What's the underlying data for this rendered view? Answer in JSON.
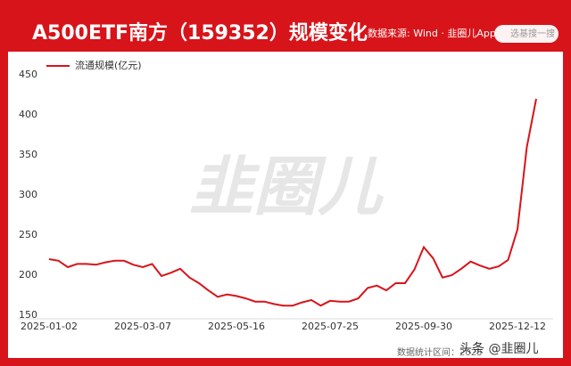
{
  "header": {
    "title": "A500ETF南方（159352）规模变化",
    "source": "数据来源: Wind · 韭圈儿App",
    "search_placeholder": "选基搜一搜"
  },
  "watermark": "韭圈儿",
  "footer": {
    "range_text": "数据统计区间：2025",
    "overlay": "头条 @韭圈儿"
  },
  "chart_data": {
    "type": "line",
    "categories": [
      "2025-01-02",
      null,
      null,
      null,
      null,
      null,
      null,
      null,
      null,
      null,
      "2025-03-07",
      null,
      null,
      null,
      null,
      null,
      null,
      null,
      null,
      null,
      "2025-05-16",
      null,
      null,
      null,
      null,
      null,
      null,
      null,
      null,
      null,
      "2025-07-25",
      null,
      null,
      null,
      null,
      null,
      null,
      null,
      null,
      null,
      "2025-09-30",
      null,
      null,
      null,
      null,
      null,
      null,
      null,
      null,
      null,
      "2025-12-12",
      null,
      null
    ],
    "series": [
      {
        "name": "流通规模(亿元)",
        "color": "#d7141a",
        "values": [
          220,
          218,
          210,
          214,
          214,
          213,
          216,
          218,
          218,
          213,
          210,
          214,
          199,
          203,
          208,
          197,
          190,
          181,
          173,
          176,
          174,
          171,
          167,
          167,
          164,
          162,
          162,
          166,
          169,
          162,
          168,
          167,
          167,
          171,
          184,
          187,
          181,
          190,
          190,
          207,
          235,
          221,
          197,
          200,
          208,
          217,
          212,
          208,
          211,
          219,
          257,
          360,
          420
        ]
      }
    ],
    "ylim": [
      150,
      450
    ],
    "yticks": [
      150,
      200,
      250,
      300,
      350,
      400,
      450
    ],
    "grid": false,
    "legend": "top-left"
  }
}
